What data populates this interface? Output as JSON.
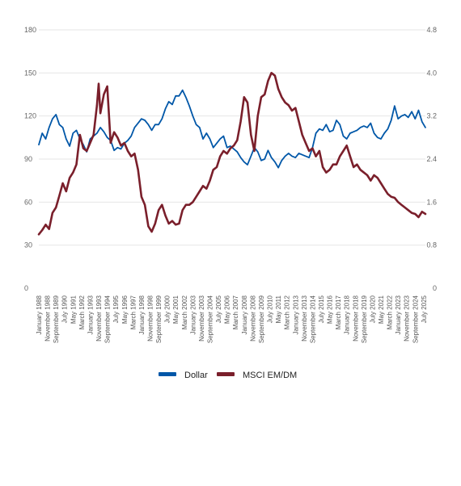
{
  "chart_data": {
    "type": "line",
    "title": "",
    "xlabel": "",
    "ylabel": "",
    "ylim": [
      0,
      180
    ],
    "y2lim": [
      0,
      4.8
    ],
    "yticks": [
      "0",
      "30",
      "60",
      "90",
      "120",
      "150",
      "180"
    ],
    "y2ticks": [
      "0",
      "0.8",
      "1.6",
      "2.4",
      "3.2",
      "4.0",
      "4.8"
    ],
    "grid": true,
    "legend": "bottom-center",
    "x_range": [
      "1988-01",
      "2025-09"
    ],
    "xtick_labels": [
      {
        "date": "1988-01",
        "label": "January 1988"
      },
      {
        "date": "1988-11",
        "label": "November 1988"
      },
      {
        "date": "1989-09",
        "label": "September 1989"
      },
      {
        "date": "1990-07",
        "label": "July 1990"
      },
      {
        "date": "1991-05",
        "label": "May 1991"
      },
      {
        "date": "1992-03",
        "label": "March 1992"
      },
      {
        "date": "1993-01",
        "label": "January 1993"
      },
      {
        "date": "1993-11",
        "label": "November 1993"
      },
      {
        "date": "1994-09",
        "label": "September 1994"
      },
      {
        "date": "1995-07",
        "label": "July 1995"
      },
      {
        "date": "1996-05",
        "label": "May 1996"
      },
      {
        "date": "1997-03",
        "label": "March 1997"
      },
      {
        "date": "1998-01",
        "label": "January 1998"
      },
      {
        "date": "1998-11",
        "label": "November 1998"
      },
      {
        "date": "1999-09",
        "label": "September 1999"
      },
      {
        "date": "2000-07",
        "label": "July 2000"
      },
      {
        "date": "2001-05",
        "label": "May 2001"
      },
      {
        "date": "2002-03",
        "label": "March 2002"
      },
      {
        "date": "2003-01",
        "label": "January 2003"
      },
      {
        "date": "2003-11",
        "label": "November 2003"
      },
      {
        "date": "2004-09",
        "label": "September 2004"
      },
      {
        "date": "2005-07",
        "label": "July 2005"
      },
      {
        "date": "2006-05",
        "label": "May 2006"
      },
      {
        "date": "2007-03",
        "label": "March 2007"
      },
      {
        "date": "2008-01",
        "label": "January 2008"
      },
      {
        "date": "2008-11",
        "label": "November 2008"
      },
      {
        "date": "2009-09",
        "label": "September 2009"
      },
      {
        "date": "2010-07",
        "label": "July 2010"
      },
      {
        "date": "2011-05",
        "label": "May 2011"
      },
      {
        "date": "2012-03",
        "label": "March 2012"
      },
      {
        "date": "2013-01",
        "label": "January 2013"
      },
      {
        "date": "2013-11",
        "label": "November 2013"
      },
      {
        "date": "2014-09",
        "label": "September 2014"
      },
      {
        "date": "2015-07",
        "label": "July 2015"
      },
      {
        "date": "2016-05",
        "label": "May 2016"
      },
      {
        "date": "2017-03",
        "label": "March 2017"
      },
      {
        "date": "2018-01",
        "label": "January 2018"
      },
      {
        "date": "2018-11",
        "label": "November 2018"
      },
      {
        "date": "2019-09",
        "label": "September 2019"
      },
      {
        "date": "2020-07",
        "label": "July 2020"
      },
      {
        "date": "2021-05",
        "label": "May 2021"
      },
      {
        "date": "2022-03",
        "label": "March 2022"
      },
      {
        "date": "2023-01",
        "label": "January 2023"
      },
      {
        "date": "2023-11",
        "label": "November 2023"
      },
      {
        "date": "2024-09",
        "label": "September 2024"
      },
      {
        "date": "2025-07",
        "label": "July 2025"
      }
    ],
    "series": [
      {
        "name": "Dollar",
        "axis": "left",
        "color": "#0057a8",
        "points": [
          [
            "1988-01",
            100
          ],
          [
            "1988-05",
            108
          ],
          [
            "1988-09",
            104
          ],
          [
            "1989-01",
            112
          ],
          [
            "1989-05",
            118
          ],
          [
            "1989-09",
            121
          ],
          [
            "1990-01",
            114
          ],
          [
            "1990-05",
            112
          ],
          [
            "1990-09",
            104
          ],
          [
            "1991-01",
            99
          ],
          [
            "1991-05",
            108
          ],
          [
            "1991-09",
            110
          ],
          [
            "1992-01",
            104
          ],
          [
            "1992-05",
            100
          ],
          [
            "1992-09",
            95
          ],
          [
            "1993-01",
            104
          ],
          [
            "1993-05",
            106
          ],
          [
            "1993-09",
            108
          ],
          [
            "1994-01",
            112
          ],
          [
            "1994-05",
            109
          ],
          [
            "1994-09",
            105
          ],
          [
            "1995-01",
            103
          ],
          [
            "1995-05",
            96
          ],
          [
            "1995-09",
            98
          ],
          [
            "1996-01",
            97
          ],
          [
            "1996-05",
            101
          ],
          [
            "1996-09",
            103
          ],
          [
            "1997-01",
            106
          ],
          [
            "1997-05",
            112
          ],
          [
            "1997-09",
            115
          ],
          [
            "1998-01",
            118
          ],
          [
            "1998-05",
            117
          ],
          [
            "1998-09",
            114
          ],
          [
            "1999-01",
            110
          ],
          [
            "1999-05",
            114
          ],
          [
            "1999-09",
            114
          ],
          [
            "2000-01",
            118
          ],
          [
            "2000-05",
            125
          ],
          [
            "2000-09",
            130
          ],
          [
            "2001-01",
            128
          ],
          [
            "2001-05",
            134
          ],
          [
            "2001-09",
            134
          ],
          [
            "2002-01",
            138
          ],
          [
            "2002-05",
            133
          ],
          [
            "2002-09",
            127
          ],
          [
            "2003-01",
            120
          ],
          [
            "2003-05",
            114
          ],
          [
            "2003-09",
            112
          ],
          [
            "2004-01",
            104
          ],
          [
            "2004-05",
            108
          ],
          [
            "2004-09",
            104
          ],
          [
            "2005-01",
            98
          ],
          [
            "2005-05",
            101
          ],
          [
            "2005-09",
            104
          ],
          [
            "2006-01",
            106
          ],
          [
            "2006-05",
            98
          ],
          [
            "2006-09",
            99
          ],
          [
            "2007-01",
            97
          ],
          [
            "2007-05",
            95
          ],
          [
            "2007-09",
            91
          ],
          [
            "2008-01",
            88
          ],
          [
            "2008-05",
            86
          ],
          [
            "2008-09",
            92
          ],
          [
            "2009-01",
            98
          ],
          [
            "2009-05",
            95
          ],
          [
            "2009-09",
            89
          ],
          [
            "2010-01",
            90
          ],
          [
            "2010-05",
            96
          ],
          [
            "2010-09",
            91
          ],
          [
            "2011-01",
            88
          ],
          [
            "2011-05",
            84
          ],
          [
            "2011-09",
            89
          ],
          [
            "2012-01",
            92
          ],
          [
            "2012-05",
            94
          ],
          [
            "2012-09",
            92
          ],
          [
            "2013-01",
            91
          ],
          [
            "2013-05",
            94
          ],
          [
            "2013-09",
            93
          ],
          [
            "2014-01",
            92
          ],
          [
            "2014-05",
            91
          ],
          [
            "2014-09",
            98
          ],
          [
            "2015-01",
            108
          ],
          [
            "2015-05",
            111
          ],
          [
            "2015-09",
            110
          ],
          [
            "2016-01",
            114
          ],
          [
            "2016-05",
            109
          ],
          [
            "2016-09",
            110
          ],
          [
            "2017-01",
            117
          ],
          [
            "2017-05",
            114
          ],
          [
            "2017-09",
            106
          ],
          [
            "2018-01",
            104
          ],
          [
            "2018-05",
            108
          ],
          [
            "2018-09",
            109
          ],
          [
            "2019-01",
            110
          ],
          [
            "2019-05",
            112
          ],
          [
            "2019-09",
            113
          ],
          [
            "2020-01",
            112
          ],
          [
            "2020-05",
            115
          ],
          [
            "2020-09",
            108
          ],
          [
            "2021-01",
            105
          ],
          [
            "2021-05",
            104
          ],
          [
            "2021-09",
            108
          ],
          [
            "2022-01",
            111
          ],
          [
            "2022-05",
            117
          ],
          [
            "2022-09",
            127
          ],
          [
            "2023-01",
            118
          ],
          [
            "2023-05",
            120
          ],
          [
            "2023-09",
            121
          ],
          [
            "2024-01",
            119
          ],
          [
            "2024-05",
            123
          ],
          [
            "2024-09",
            118
          ],
          [
            "2025-01",
            124
          ],
          [
            "2025-05",
            116
          ],
          [
            "2025-09",
            112
          ]
        ]
      },
      {
        "name": "MSCI EM/DM",
        "axis": "right",
        "color": "#7a1f2b",
        "points": [
          [
            "1988-01",
            1.0
          ],
          [
            "1988-05",
            1.08
          ],
          [
            "1988-09",
            1.18
          ],
          [
            "1989-01",
            1.1
          ],
          [
            "1989-05",
            1.4
          ],
          [
            "1989-09",
            1.5
          ],
          [
            "1990-01",
            1.72
          ],
          [
            "1990-05",
            1.95
          ],
          [
            "1990-09",
            1.8
          ],
          [
            "1991-01",
            2.05
          ],
          [
            "1991-05",
            2.15
          ],
          [
            "1991-09",
            2.3
          ],
          [
            "1992-01",
            2.85
          ],
          [
            "1992-05",
            2.6
          ],
          [
            "1992-09",
            2.55
          ],
          [
            "1993-01",
            2.7
          ],
          [
            "1993-05",
            2.85
          ],
          [
            "1993-09",
            3.4
          ],
          [
            "1993-11",
            3.8
          ],
          [
            "1994-01",
            3.25
          ],
          [
            "1994-05",
            3.6
          ],
          [
            "1994-09",
            3.75
          ],
          [
            "1995-01",
            2.7
          ],
          [
            "1995-05",
            2.9
          ],
          [
            "1995-09",
            2.8
          ],
          [
            "1996-01",
            2.65
          ],
          [
            "1996-05",
            2.7
          ],
          [
            "1996-09",
            2.55
          ],
          [
            "1997-01",
            2.45
          ],
          [
            "1997-05",
            2.5
          ],
          [
            "1997-09",
            2.2
          ],
          [
            "1998-01",
            1.7
          ],
          [
            "1998-05",
            1.55
          ],
          [
            "1998-09",
            1.15
          ],
          [
            "1999-01",
            1.05
          ],
          [
            "1999-05",
            1.2
          ],
          [
            "1999-09",
            1.45
          ],
          [
            "2000-01",
            1.55
          ],
          [
            "2000-05",
            1.35
          ],
          [
            "2000-09",
            1.2
          ],
          [
            "2001-01",
            1.25
          ],
          [
            "2001-05",
            1.18
          ],
          [
            "2001-09",
            1.2
          ],
          [
            "2002-01",
            1.45
          ],
          [
            "2002-05",
            1.55
          ],
          [
            "2002-09",
            1.55
          ],
          [
            "2003-01",
            1.6
          ],
          [
            "2003-05",
            1.7
          ],
          [
            "2003-09",
            1.8
          ],
          [
            "2004-01",
            1.9
          ],
          [
            "2004-05",
            1.85
          ],
          [
            "2004-09",
            2.0
          ],
          [
            "2005-01",
            2.2
          ],
          [
            "2005-05",
            2.25
          ],
          [
            "2005-09",
            2.45
          ],
          [
            "2006-01",
            2.55
          ],
          [
            "2006-05",
            2.5
          ],
          [
            "2006-09",
            2.6
          ],
          [
            "2007-01",
            2.65
          ],
          [
            "2007-05",
            2.75
          ],
          [
            "2007-09",
            3.1
          ],
          [
            "2008-01",
            3.55
          ],
          [
            "2008-05",
            3.45
          ],
          [
            "2008-09",
            2.85
          ],
          [
            "2009-01",
            2.55
          ],
          [
            "2009-05",
            3.2
          ],
          [
            "2009-09",
            3.55
          ],
          [
            "2010-01",
            3.6
          ],
          [
            "2010-05",
            3.85
          ],
          [
            "2010-09",
            4.0
          ],
          [
            "2011-01",
            3.95
          ],
          [
            "2011-05",
            3.7
          ],
          [
            "2011-09",
            3.55
          ],
          [
            "2012-01",
            3.45
          ],
          [
            "2012-05",
            3.4
          ],
          [
            "2012-09",
            3.3
          ],
          [
            "2013-01",
            3.35
          ],
          [
            "2013-05",
            3.1
          ],
          [
            "2013-09",
            2.85
          ],
          [
            "2014-01",
            2.7
          ],
          [
            "2014-05",
            2.55
          ],
          [
            "2014-09",
            2.6
          ],
          [
            "2015-01",
            2.45
          ],
          [
            "2015-05",
            2.55
          ],
          [
            "2015-09",
            2.25
          ],
          [
            "2016-01",
            2.15
          ],
          [
            "2016-05",
            2.2
          ],
          [
            "2016-09",
            2.3
          ],
          [
            "2017-01",
            2.3
          ],
          [
            "2017-05",
            2.45
          ],
          [
            "2017-09",
            2.55
          ],
          [
            "2018-01",
            2.65
          ],
          [
            "2018-05",
            2.45
          ],
          [
            "2018-09",
            2.25
          ],
          [
            "2019-01",
            2.3
          ],
          [
            "2019-05",
            2.2
          ],
          [
            "2019-09",
            2.15
          ],
          [
            "2020-01",
            2.1
          ],
          [
            "2020-05",
            2.0
          ],
          [
            "2020-09",
            2.1
          ],
          [
            "2021-01",
            2.05
          ],
          [
            "2021-05",
            1.95
          ],
          [
            "2021-09",
            1.85
          ],
          [
            "2022-01",
            1.75
          ],
          [
            "2022-05",
            1.7
          ],
          [
            "2022-09",
            1.68
          ],
          [
            "2023-01",
            1.6
          ],
          [
            "2023-05",
            1.55
          ],
          [
            "2023-09",
            1.5
          ],
          [
            "2024-01",
            1.45
          ],
          [
            "2024-05",
            1.4
          ],
          [
            "2024-09",
            1.38
          ],
          [
            "2025-01",
            1.32
          ],
          [
            "2025-05",
            1.42
          ],
          [
            "2025-09",
            1.38
          ]
        ]
      }
    ]
  },
  "legend": {
    "items": [
      {
        "label": "Dollar",
        "color": "#0057a8"
      },
      {
        "label": "MSCI EM/DM",
        "color": "#7a1f2b"
      }
    ]
  }
}
